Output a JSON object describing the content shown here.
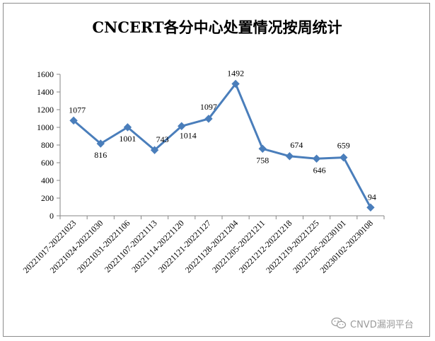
{
  "chart_data": {
    "type": "line",
    "title": "CNCERT各分中心处置情况按周统计",
    "categories": [
      "20221017-20221023",
      "20221024-20221030",
      "20221031-20221106",
      "20221107-20221113",
      "20221114-20221120",
      "20221121-20221127",
      "20221128-20221204",
      "20221205-20221211",
      "20221212-20221218",
      "20221219-20221225",
      "20221226-20230101",
      "20230102-20230108"
    ],
    "values": [
      1077,
      816,
      1001,
      743,
      1014,
      1097,
      1492,
      758,
      674,
      646,
      659,
      94
    ],
    "ylim": [
      0,
      1600
    ],
    "yticks": [
      0,
      200,
      400,
      600,
      800,
      1000,
      1200,
      1400,
      1600
    ],
    "grid": false,
    "line_color": "#4a7ebb",
    "legend": "none"
  },
  "watermark": {
    "text": "CNVD漏洞平台",
    "icon": "wechat-icon"
  }
}
